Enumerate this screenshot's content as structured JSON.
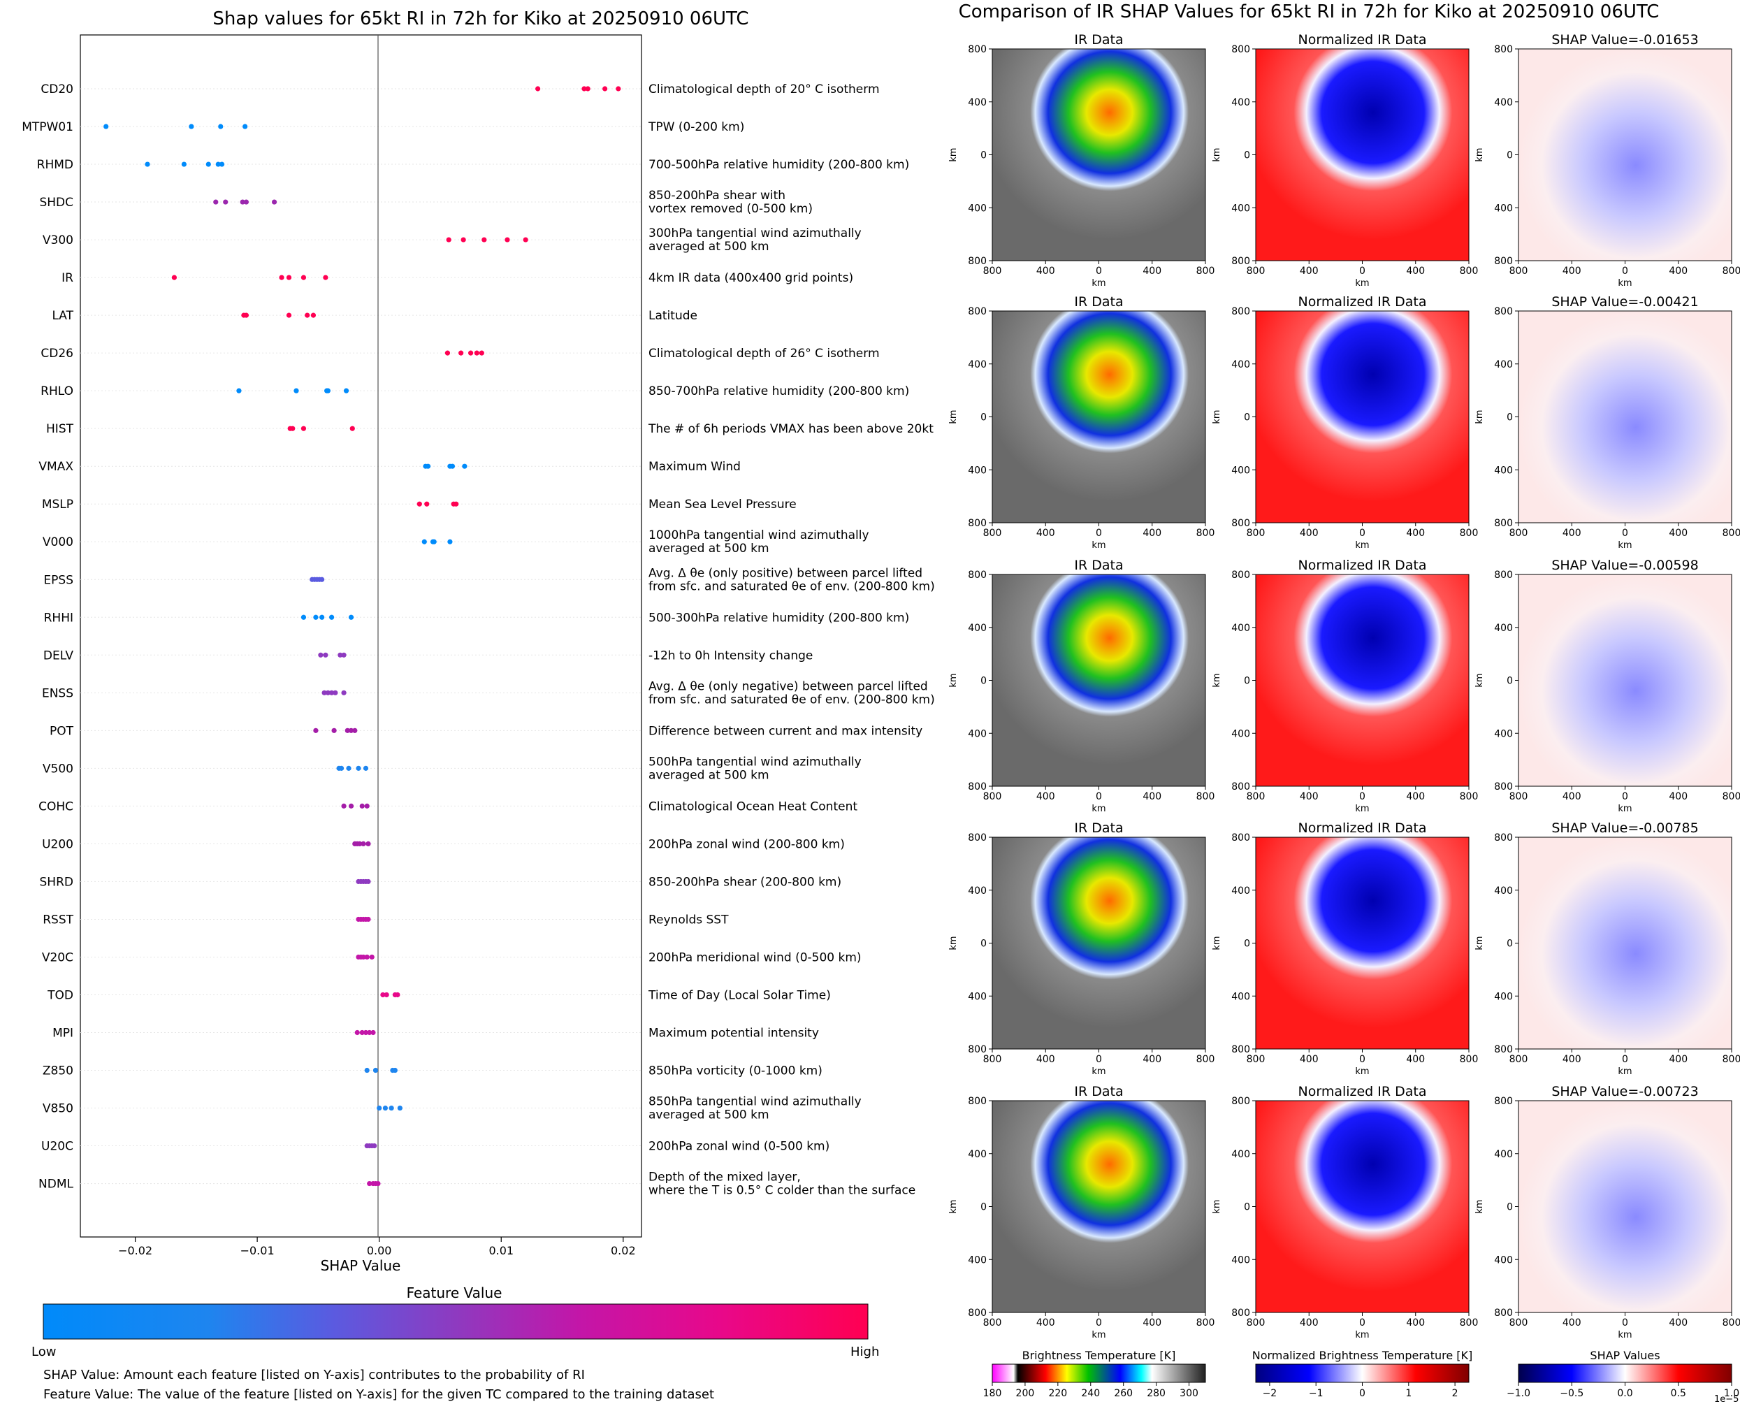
{
  "left_title": "Shap values for 65kt RI in 72h for Kiko at 20250910 06UTC",
  "right_title": "Comparison of IR SHAP Values for 65kt RI in 72h for Kiko at 20250910 06UTC",
  "chart_data": [
    {
      "type": "scatter",
      "title": "Shap values for 65kt RI in 72h for Kiko at 20250910 06UTC",
      "xlabel": "SHAP Value",
      "xlim": [
        -0.0245,
        0.0215
      ],
      "xticks": [
        -0.02,
        -0.01,
        0.0,
        0.01,
        0.02
      ],
      "xtick_labels": [
        "−0.02",
        "−0.01",
        "0.00",
        "0.01",
        "0.02"
      ],
      "colorbar": {
        "title": "Feature Value",
        "low_label": "Low",
        "high_label": "High",
        "colors": [
          "#008afa",
          "#1e85ef",
          "#5a5be0",
          "#8e3ac0",
          "#c316a8",
          "#e8088a",
          "#ff0052"
        ]
      },
      "features": [
        {
          "code": "CD20",
          "label": "Climatological depth of 20° C isotherm",
          "color": "#ff0052",
          "values": [
            0.013,
            0.0168,
            0.0171,
            0.0185,
            0.0196
          ]
        },
        {
          "code": "MTPW01",
          "label": "TPW (0-200 km)",
          "color": "#008bfb",
          "values": [
            -0.0224,
            -0.0154,
            -0.013,
            -0.011
          ]
        },
        {
          "code": "RHMD",
          "label": "700-500hPa relative humidity (200-800 km)",
          "color": "#008bfb",
          "values": [
            -0.019,
            -0.016,
            -0.014,
            -0.0132,
            -0.0129
          ]
        },
        {
          "code": "SHDC",
          "label": "850-200hPa shear with\nvortex removed (0-500 km)",
          "color": "#9b27ae",
          "values": [
            -0.0134,
            -0.0126,
            -0.0112,
            -0.0109,
            -0.0086
          ]
        },
        {
          "code": "V300",
          "label": "300hPa tangential wind azimuthally\naveraged at 500 km",
          "color": "#ff0052",
          "values": [
            0.0057,
            0.0069,
            0.0086,
            0.0105,
            0.012
          ]
        },
        {
          "code": "IR",
          "label": "4km IR data (400x400 grid points)",
          "color": "#ff0052",
          "values": [
            -0.0168,
            -0.008,
            -0.0074,
            -0.0062,
            -0.0044
          ]
        },
        {
          "code": "LAT",
          "label": "Latitude",
          "color": "#ff0052",
          "values": [
            -0.0111,
            -0.0109,
            -0.0074,
            -0.0059,
            -0.0054
          ]
        },
        {
          "code": "CD26",
          "label": "Climatological depth of 26° C isotherm",
          "color": "#ff0052",
          "values": [
            0.0056,
            0.0067,
            0.0075,
            0.008,
            0.0084
          ]
        },
        {
          "code": "RHLO",
          "label": "850-700hPa relative humidity (200-800 km)",
          "color": "#008bfb",
          "values": [
            -0.0115,
            -0.0068,
            -0.0043,
            -0.0042,
            -0.0027
          ]
        },
        {
          "code": "HIST",
          "label": "The # of 6h periods VMAX has been above 20kt",
          "color": "#ff0052",
          "values": [
            -0.0073,
            -0.0071,
            -0.0062,
            -0.0022
          ]
        },
        {
          "code": "VMAX",
          "label": "Maximum Wind",
          "color": "#008bfb",
          "values": [
            0.0038,
            0.004,
            0.0058,
            0.006,
            0.007
          ]
        },
        {
          "code": "MSLP",
          "label": "Mean Sea Level Pressure",
          "color": "#ff0052",
          "values": [
            0.0033,
            0.0039,
            0.0061,
            0.0063
          ]
        },
        {
          "code": "V000",
          "label": "1000hPa tangential wind azimuthally\naveraged at 500 km",
          "color": "#008bfb",
          "values": [
            0.0037,
            0.0044,
            0.0045,
            0.0058
          ]
        },
        {
          "code": "EPSS",
          "label": "Avg. Δ θe (only positive) between parcel lifted\nfrom sfc. and saturated θe of env. (200-800 km)",
          "color": "#5a5be0",
          "values": [
            -0.0055,
            -0.0053,
            -0.0051,
            -0.0049,
            -0.0047
          ]
        },
        {
          "code": "RHHI",
          "label": "500-300hPa relative humidity (200-800 km)",
          "color": "#008bfb",
          "values": [
            -0.0062,
            -0.0052,
            -0.0047,
            -0.0039,
            -0.0023
          ]
        },
        {
          "code": "DELV",
          "label": "-12h to 0h Intensity change",
          "color": "#8e3ac0",
          "values": [
            -0.0048,
            -0.0044,
            -0.0032,
            -0.0029
          ]
        },
        {
          "code": "ENSS",
          "label": "Avg. Δ θe (only negative) between parcel lifted\nfrom sfc. and saturated θe of env. (200-800 km)",
          "color": "#8e3ac0",
          "values": [
            -0.0045,
            -0.0042,
            -0.0039,
            -0.0036,
            -0.0029
          ]
        },
        {
          "code": "POT",
          "label": "Difference between current and max intensity",
          "color": "#a41da8",
          "values": [
            -0.0052,
            -0.0037,
            -0.0026,
            -0.0023,
            -0.002
          ]
        },
        {
          "code": "V500",
          "label": "500hPa tangential wind azimuthally\naveraged at 500 km",
          "color": "#1e85ef",
          "values": [
            -0.0033,
            -0.0031,
            -0.0025,
            -0.0017,
            -0.0011
          ]
        },
        {
          "code": "COHC",
          "label": "Climatological Ocean Heat Content",
          "color": "#a41da8",
          "values": [
            -0.0029,
            -0.0023,
            -0.0014,
            -0.001
          ]
        },
        {
          "code": "U200",
          "label": "200hPa zonal wind (200-800 km)",
          "color": "#a41da8",
          "values": [
            -0.002,
            -0.0018,
            -0.0016,
            -0.0013,
            -0.0009
          ]
        },
        {
          "code": "SHRD",
          "label": "850-200hPa shear (200-800 km)",
          "color": "#8e3ac0",
          "values": [
            -0.0017,
            -0.0015,
            -0.0013,
            -0.0011,
            -0.0009
          ]
        },
        {
          "code": "RSST",
          "label": "Reynolds SST",
          "color": "#c316a8",
          "values": [
            -0.0017,
            -0.0015,
            -0.0013,
            -0.0011,
            -0.0009
          ]
        },
        {
          "code": "V20C",
          "label": "200hPa meridional wind (0-500 km)",
          "color": "#c316a8",
          "values": [
            -0.0017,
            -0.0015,
            -0.0013,
            -0.001,
            -0.0006
          ]
        },
        {
          "code": "TOD",
          "label": "Time of Day (Local Solar Time)",
          "color": "#e8088a",
          "values": [
            0.0003,
            0.0006,
            0.0013,
            0.0015
          ]
        },
        {
          "code": "MPI",
          "label": "Maximum potential intensity",
          "color": "#c316a8",
          "values": [
            -0.0018,
            -0.0014,
            -0.0011,
            -0.0008,
            -0.0005
          ]
        },
        {
          "code": "Z850",
          "label": "850hPa vorticity (0-1000 km)",
          "color": "#1e85ef",
          "values": [
            -0.001,
            -0.0003,
            0.0011,
            0.0013
          ]
        },
        {
          "code": "V850",
          "label": "850hPa tangential wind azimuthally\naveraged at 500 km",
          "color": "#1e85ef",
          "values": [
            0.0,
            0.0005,
            0.001,
            0.0017
          ]
        },
        {
          "code": "U20C",
          "label": "200hPa zonal wind (0-500 km)",
          "color": "#8e3ac0",
          "values": [
            -0.001,
            -0.0008,
            -0.0006,
            -0.0004
          ]
        },
        {
          "code": "NDML",
          "label": "Depth of the mixed layer,\nwhere the T is 0.5° C colder than the surface",
          "color": "#c316a8",
          "values": [
            -0.0008,
            -0.0005,
            -0.0003,
            -0.0001
          ]
        }
      ]
    },
    {
      "type": "heatmap",
      "title": "Comparison of IR SHAP Values for 65kt RI in 72h for Kiko at 20250910 06UTC",
      "panel_titles": [
        "IR Data",
        "Normalized IR Data"
      ],
      "shap_titles": [
        "SHAP Value=-0.01653",
        "SHAP Value=-0.00421",
        "SHAP Value=-0.00598",
        "SHAP Value=-0.00785",
        "SHAP Value=-0.00723"
      ],
      "xlabel": "km",
      "ylabel": "km",
      "ticks": [
        "800",
        "400",
        "0",
        "400",
        "800"
      ],
      "colorbars": [
        {
          "title": "Brightness Temperature [K]",
          "ticks": [
            "180",
            "200",
            "220",
            "240",
            "260",
            "280",
            "300"
          ],
          "range": [
            180,
            310
          ]
        },
        {
          "title": "Normalized Brightness Temperature [K]",
          "ticks": [
            "−2",
            "−1",
            "0",
            "1",
            "2"
          ],
          "range": [
            -2.3,
            2.3
          ]
        },
        {
          "title": "SHAP Values",
          "ticks": [
            "−1.0",
            "−0.5",
            "0.0",
            "0.5",
            "1.0"
          ],
          "range": [
            -1,
            1
          ],
          "offset": "1e−5"
        }
      ]
    }
  ],
  "footer": {
    "line1": "SHAP Value: Amount each feature [listed on Y-axis] contributes to the probability of RI",
    "line2": "Feature Value: The value of the feature [listed on Y-axis] for the given TC compared to the training dataset"
  }
}
